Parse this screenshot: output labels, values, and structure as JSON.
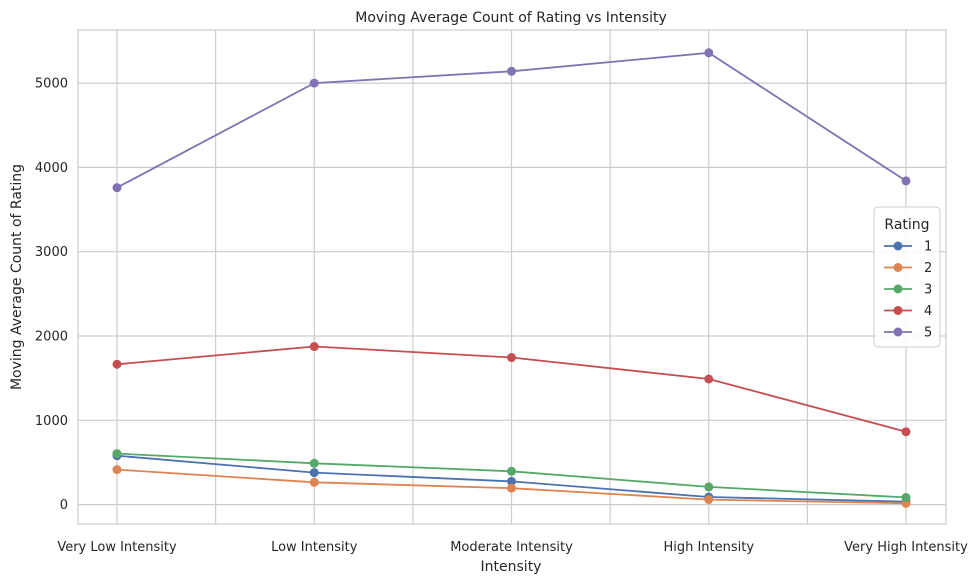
{
  "chart_data": {
    "type": "line",
    "title": "Moving Average Count of Rating vs Intensity",
    "xlabel": "Intensity",
    "ylabel": "Moving Average Count of Rating",
    "categories": [
      "Very Low Intensity",
      "Low Intensity",
      "Moderate Intensity",
      "High Intensity",
      "Very High Intensity"
    ],
    "ylim": [
      -230,
      5630
    ],
    "yticks": [
      0,
      1000,
      2000,
      3000,
      4000,
      5000
    ],
    "grid": true,
    "legend": {
      "title": "Rating",
      "placement": "center-right"
    },
    "series": [
      {
        "name": "1",
        "color": "#4c72b0",
        "values": [
          580,
          380,
          275,
          90,
          35
        ]
      },
      {
        "name": "2",
        "color": "#dd8452",
        "values": [
          415,
          265,
          195,
          60,
          15
        ]
      },
      {
        "name": "3",
        "color": "#55a868",
        "values": [
          605,
          490,
          395,
          210,
          85
        ]
      },
      {
        "name": "4",
        "color": "#c44e52",
        "values": [
          1665,
          1875,
          1745,
          1490,
          865
        ]
      },
      {
        "name": "5",
        "color": "#8172b3",
        "values": [
          3760,
          5000,
          5140,
          5360,
          3840
        ]
      }
    ]
  }
}
